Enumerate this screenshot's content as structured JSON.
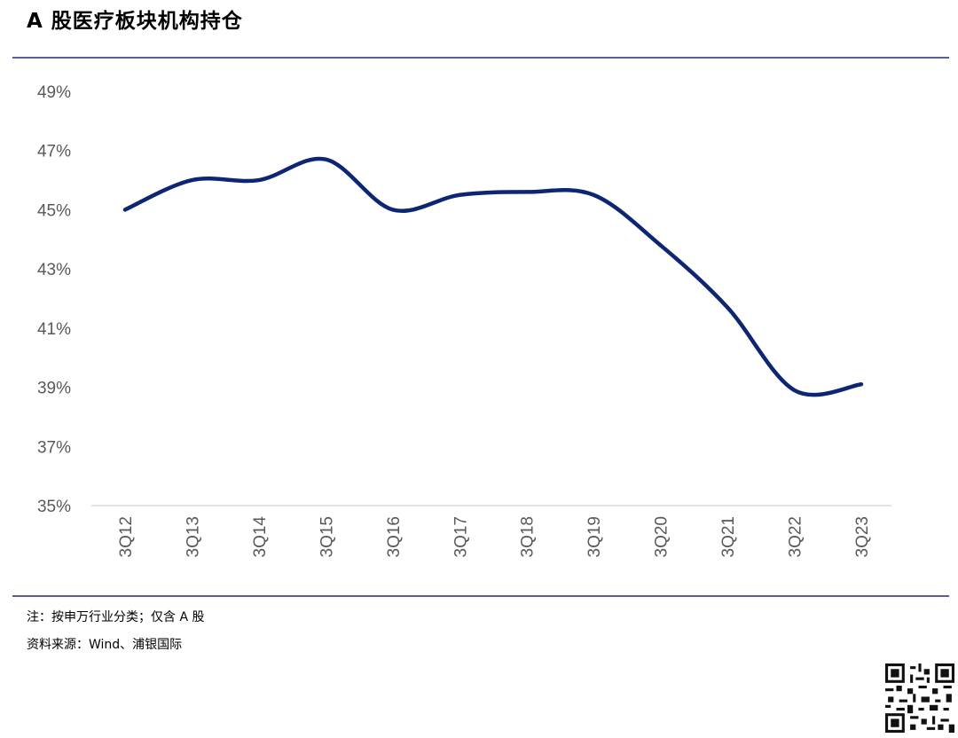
{
  "header": {
    "title": "A 股医疗板块机构持仓"
  },
  "notes": {
    "note": "注：按申万行业分类；仅含 A 股",
    "source": "资料来源：Wind、浦银国际"
  },
  "colors": {
    "rule": "#5b5e9e",
    "line": "#0d2674",
    "axis": "#d9d9d9",
    "text": "#595959"
  },
  "chart_data": {
    "type": "line",
    "title": "A 股医疗板块机构持仓",
    "xlabel": "",
    "ylabel": "",
    "categories": [
      "3Q12",
      "3Q13",
      "3Q14",
      "3Q15",
      "3Q16",
      "3Q17",
      "3Q18",
      "3Q19",
      "3Q20",
      "3Q21",
      "3Q22",
      "3Q23"
    ],
    "series": [
      {
        "values": [
          45.0,
          46.0,
          46.0,
          46.7,
          45.0,
          45.5,
          45.6,
          45.5,
          43.8,
          41.7,
          38.9,
          39.1
        ]
      }
    ],
    "y_ticks": [
      "35%",
      "37%",
      "39%",
      "41%",
      "43%",
      "45%",
      "47%",
      "49%"
    ],
    "ylim": [
      35,
      49
    ],
    "y_unit": "%",
    "grid": false,
    "legend": "none",
    "x_tick_rotation": "vertical"
  }
}
